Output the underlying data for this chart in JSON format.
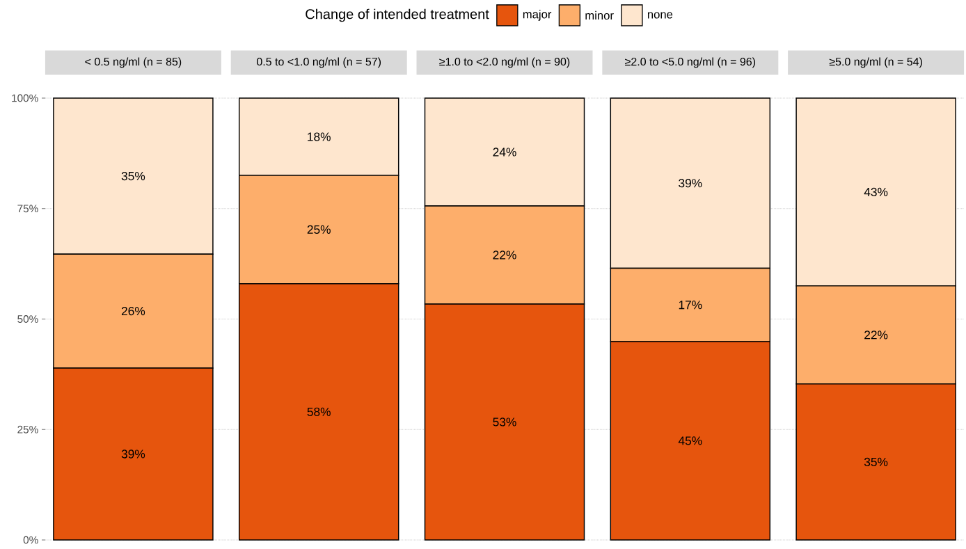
{
  "chart_data": {
    "type": "bar",
    "stacked": true,
    "legend_title": "Change of intended treatment",
    "legend": "top",
    "grid": "y",
    "categories": [
      "< 0.5 ng/ml (n = 85)",
      "0.5 to <1.0 ng/ml (n = 57)",
      "≥1.0 to <2.0 ng/ml (n = 90)",
      "≥2.0 to <5.0 ng/ml (n = 96)",
      "≥5.0 ng/ml (n = 54)"
    ],
    "series": [
      {
        "name": "major",
        "color": "#e6550d",
        "values": [
          38.9,
          58.0,
          53.4,
          44.9,
          35.3
        ],
        "value_labels": [
          "39%",
          "58%",
          "53%",
          "45%",
          "35%"
        ]
      },
      {
        "name": "minor",
        "color": "#fdae6b",
        "values": [
          25.8,
          24.5,
          22.2,
          16.6,
          22.2
        ],
        "value_labels": [
          "26%",
          "25%",
          "22%",
          "17%",
          "22%"
        ]
      },
      {
        "name": "none",
        "color": "#fee6ce",
        "values": [
          35.3,
          17.5,
          24.4,
          38.5,
          42.5
        ],
        "value_labels": [
          "35%",
          "18%",
          "24%",
          "39%",
          "43%"
        ]
      }
    ],
    "ylim": [
      0,
      100
    ],
    "yticks": [
      {
        "value": 0,
        "label": "0%"
      },
      {
        "value": 25,
        "label": "25%"
      },
      {
        "value": 50,
        "label": "50%"
      },
      {
        "value": 75,
        "label": "75%"
      },
      {
        "value": 100,
        "label": "100%"
      }
    ]
  }
}
